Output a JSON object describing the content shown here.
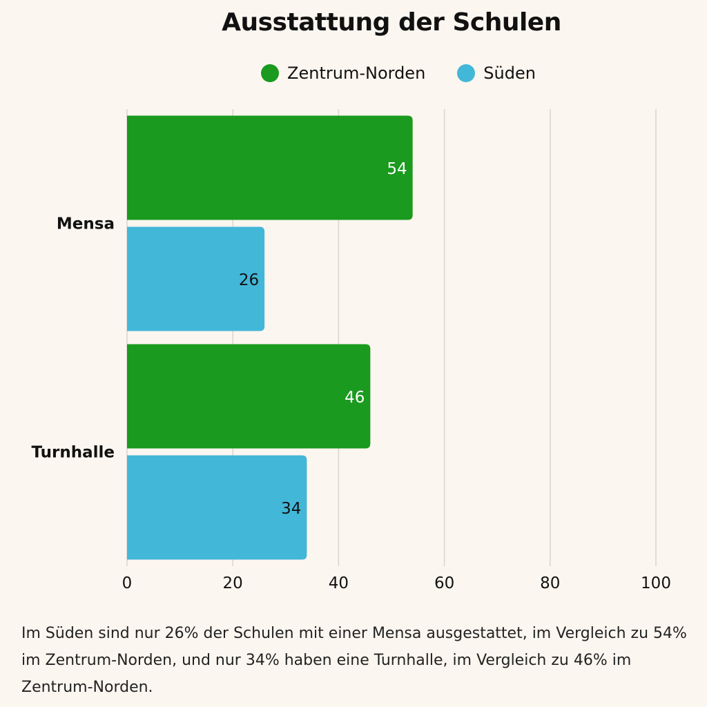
{
  "chart_data": {
    "type": "bar",
    "orientation": "horizontal",
    "title": "Ausstattung der Schulen",
    "categories": [
      "Mensa",
      "Turnhalle"
    ],
    "series": [
      {
        "name": "Zentrum-Norden",
        "values": [
          54,
          46
        ],
        "color": "#1a9a1e",
        "label_color": "#ffffff"
      },
      {
        "name": "Süden",
        "values": [
          26,
          34
        ],
        "color": "#43b7d8",
        "label_color": "#111111"
      }
    ],
    "xlim": [
      0,
      100
    ],
    "xticks": [
      "0",
      "20",
      "40",
      "60",
      "80",
      "100"
    ],
    "grid": true,
    "legend": "top-center"
  },
  "caption": "Im Süden sind nur 26% der Schulen mit einer Mensa ausgestattet, im Vergleich zu 54% im Zentrum-Norden, und nur 34% haben eine Turnhalle, im Vergleich zu 46% im Zentrum-Norden."
}
